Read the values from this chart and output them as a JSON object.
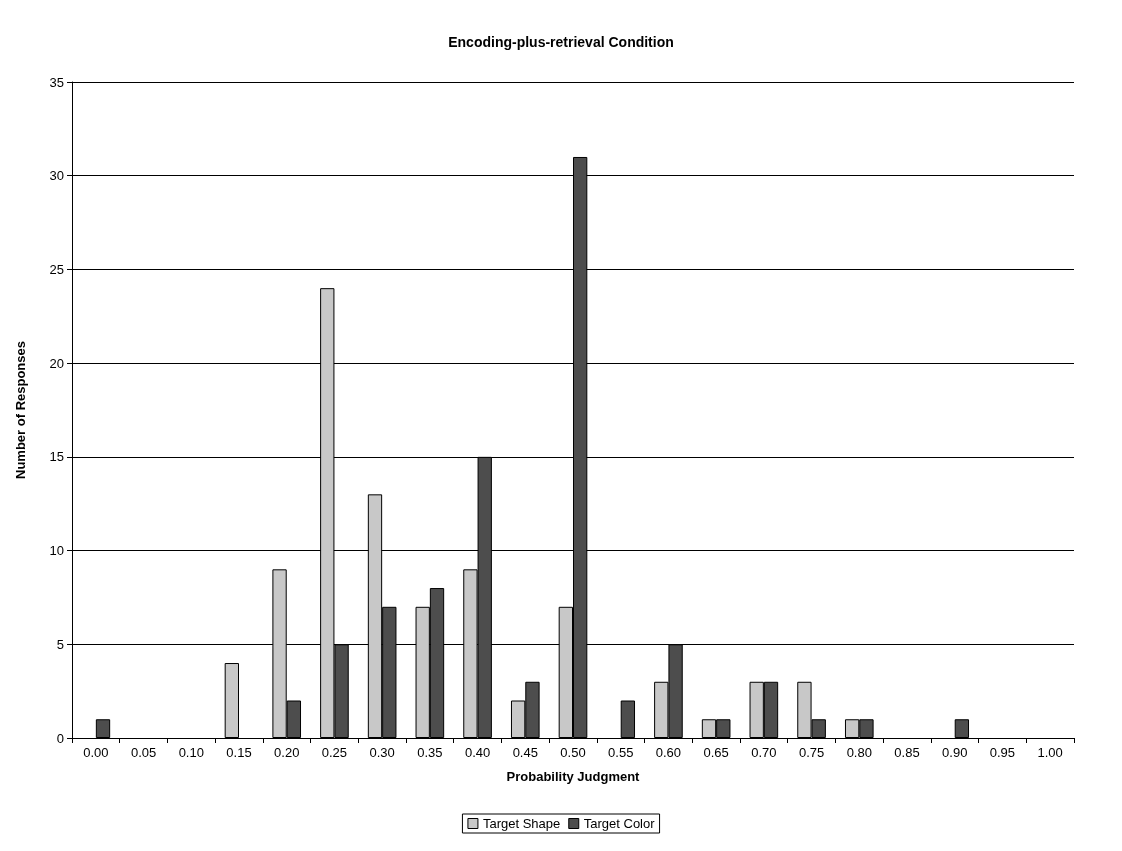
{
  "chart_data": {
    "type": "bar",
    "title": "Encoding-plus-retrieval Condition",
    "xlabel": "Probability Judgment",
    "ylabel": "Number of Responses",
    "categories": [
      "0.00",
      "0.05",
      "0.10",
      "0.15",
      "0.20",
      "0.25",
      "0.30",
      "0.35",
      "0.40",
      "0.45",
      "0.50",
      "0.55",
      "0.60",
      "0.65",
      "0.70",
      "0.75",
      "0.80",
      "0.85",
      "0.90",
      "0.95",
      "1.00"
    ],
    "series": [
      {
        "name": "Target Shape",
        "color": "#c8c8c8",
        "values": [
          0,
          0,
          0,
          4,
          9,
          24,
          13,
          7,
          9,
          2,
          7,
          0,
          3,
          1,
          3,
          3,
          1,
          0,
          0,
          0,
          0
        ]
      },
      {
        "name": "Target Color",
        "color": "#4d4d4d",
        "values": [
          1,
          0,
          0,
          0,
          2,
          5,
          7,
          8,
          15,
          3,
          31,
          2,
          5,
          1,
          3,
          1,
          1,
          0,
          1,
          0,
          0
        ]
      }
    ],
    "ylim": [
      0,
      35
    ],
    "yticks": [
      0,
      5,
      10,
      15,
      20,
      25,
      30,
      35
    ],
    "grid": "y",
    "legend": "bottom"
  }
}
